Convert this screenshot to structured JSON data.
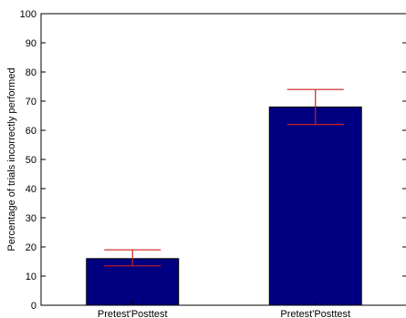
{
  "chart_data": {
    "type": "bar",
    "title": "",
    "xlabel": "",
    "ylabel": "Percentage of trials incorrectly performed",
    "categories": [
      "Pretest'Posttest",
      "Pretest'Posttest"
    ],
    "values": [
      16,
      68
    ],
    "error_low": [
      13.5,
      62
    ],
    "error_high": [
      19,
      74
    ],
    "ylim": [
      0,
      100
    ],
    "yticks": [
      0,
      10,
      20,
      30,
      40,
      50,
      60,
      70,
      80,
      90,
      100
    ],
    "grid": false,
    "legend": "none",
    "colors": {
      "bar": "#000080",
      "errorbar": "#cc1f1f",
      "axis": "#000000"
    }
  }
}
